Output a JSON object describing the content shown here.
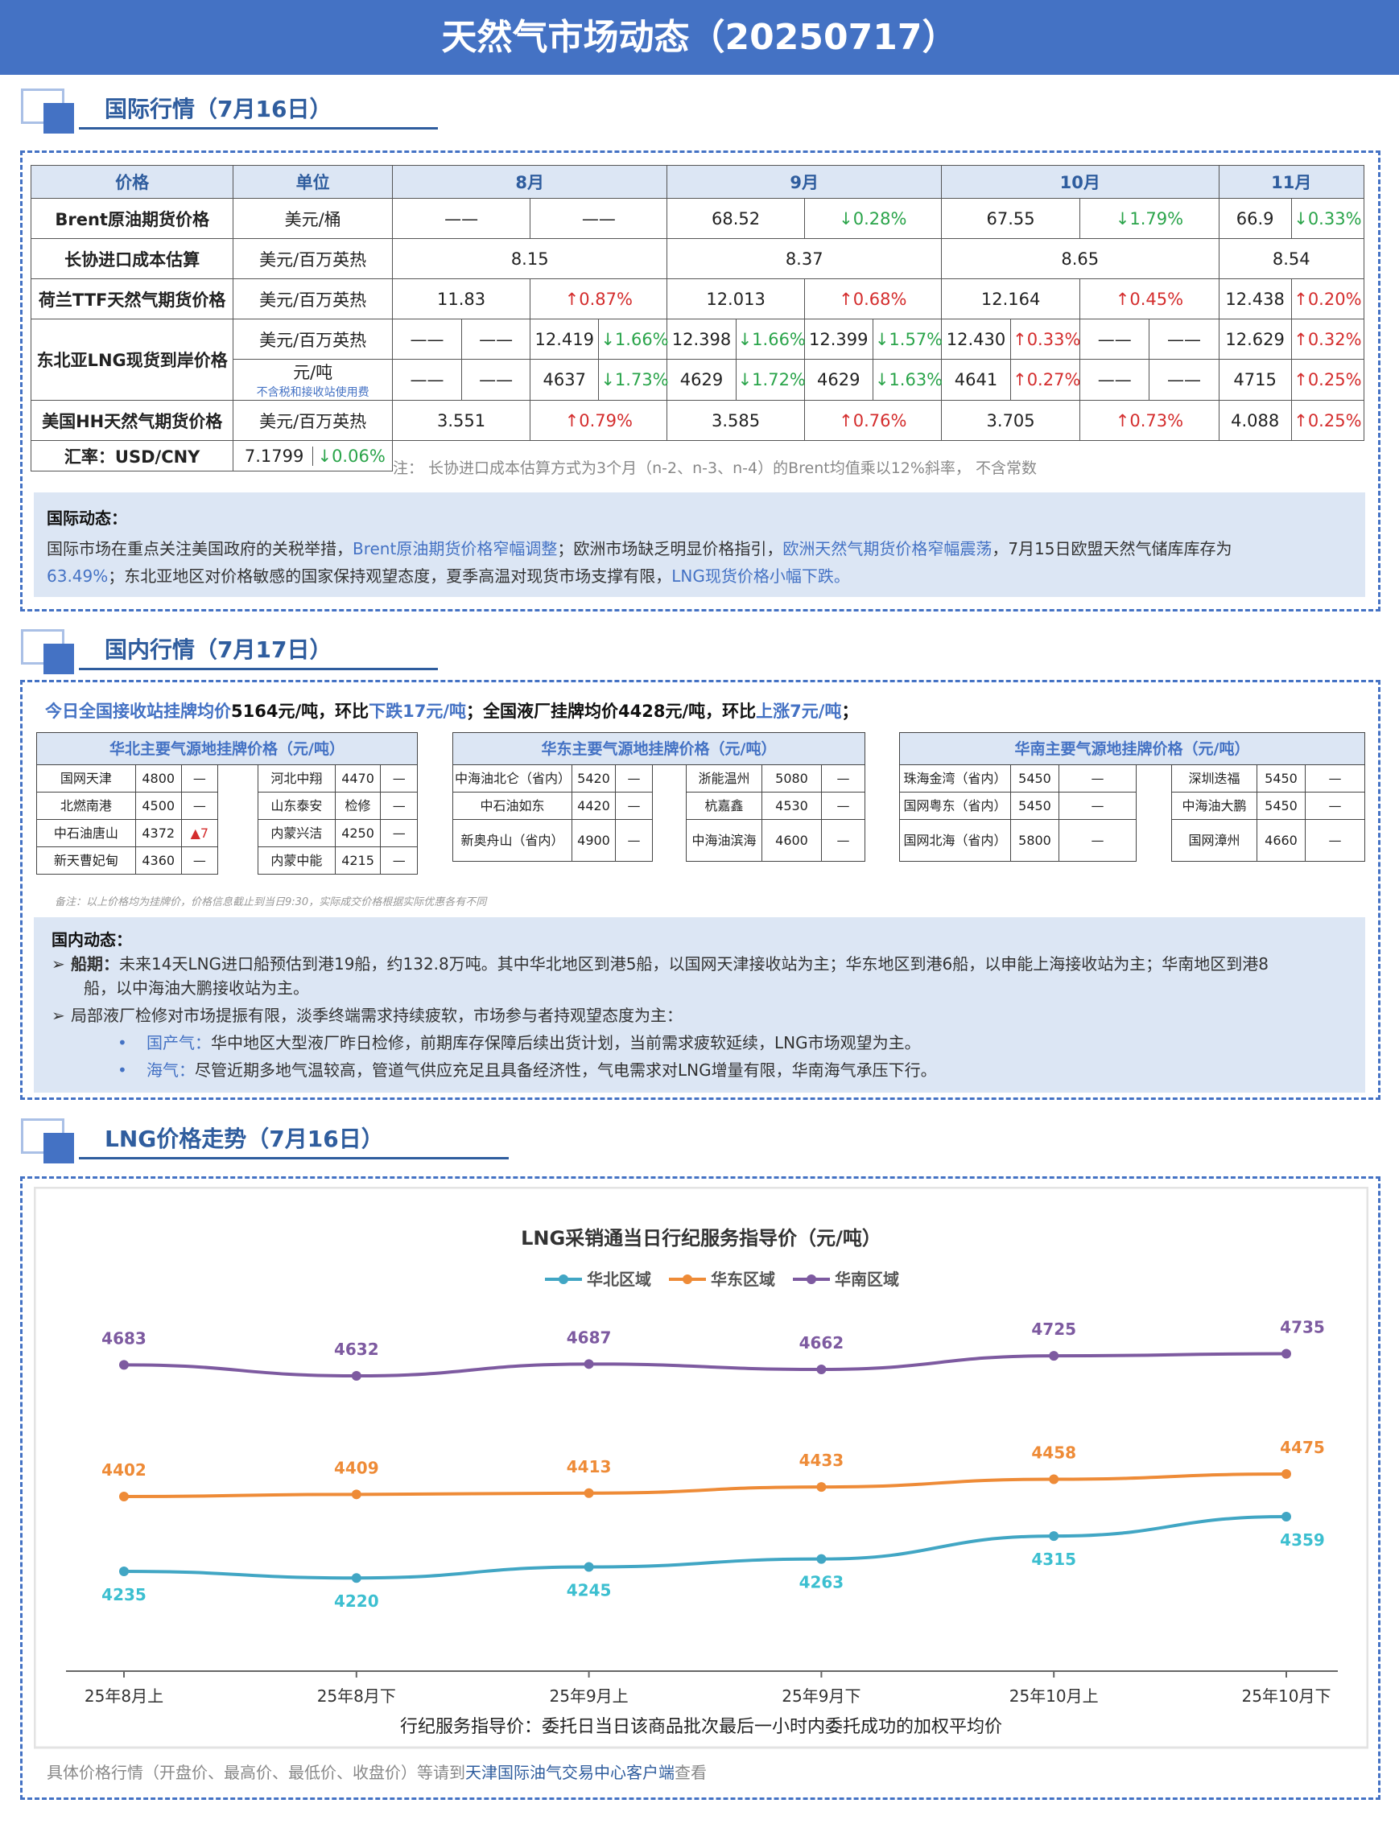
{
  "title": "天然气市场动态（20250717）",
  "sec1": "国际行情（7月16日）",
  "sec2": "国内行情（7月17日）",
  "sec3": "LNG价格走势（7月16日）",
  "intl_table": {
    "headers": [
      "价格",
      "单位",
      "8月",
      "9月",
      "10月",
      "11月"
    ],
    "brent": {
      "label": "Brent原油期货价格",
      "unit": "美元/桶",
      "c": [
        "——",
        "——",
        "68.52",
        "↓0.28%",
        "67.55",
        "↓1.79%",
        "66.9",
        "↓0.33%"
      ]
    },
    "cost": {
      "label": "长协进口成本估算",
      "unit": "美元/百万英热",
      "c": [
        "8.15",
        "8.37",
        "8.65",
        "8.54"
      ]
    },
    "ttf": {
      "label": "荷兰TTF天然气期货价格",
      "unit": "美元/百万英热",
      "c": [
        "11.83",
        "↑0.87%",
        "12.013",
        "↑0.68%",
        "12.164",
        "↑0.45%",
        "12.438",
        "↑0.20%"
      ]
    },
    "lng": {
      "label": "东北亚LNG现货到岸价格",
      "unit1": "美元/百万英热",
      "unit2": "元/吨",
      "unit2_note": "不含税和接收站使用费",
      "r1": [
        "——",
        "——",
        "12.419",
        "↓1.66%",
        "12.398",
        "↓1.66%",
        "12.399",
        "↓1.57%",
        "12.430",
        "↑0.33%",
        "——",
        "——",
        "12.629",
        "↑0.32%"
      ],
      "r2": [
        "——",
        "——",
        "4637",
        "↓1.73%",
        "4629",
        "↓1.72%",
        "4629",
        "↓1.63%",
        "4641",
        "↑0.27%",
        "——",
        "——",
        "4715",
        "↑0.25%"
      ]
    },
    "hh": {
      "label": "美国HH天然气期货价格",
      "unit": "美元/百万英热",
      "c": [
        "3.551",
        "↑0.79%",
        "3.585",
        "↑0.76%",
        "3.705",
        "↑0.73%",
        "4.088",
        "↑0.25%"
      ]
    },
    "fx": {
      "label": "汇率：USD/CNY",
      "value": "7.1799",
      "change": "↓0.06%"
    }
  },
  "note": "注：  长协进口成本估算方式为3个月（n-2、n-3、n-4）的Brent均值乘以12%斜率，  不含常数",
  "intl_dyn": {
    "head": "国际动态：",
    "p1a": "国际市场在重点关注美国政府的关税举措，",
    "p1b": "Brent原油期货价格窄幅调整",
    "p1c": "；欧洲市场缺乏明显价格指引，",
    "p1d": "欧洲天然气期货价格窄幅震荡",
    "p1e": "，7月15日欧盟天然气储库库存为",
    "p2a": "63.49%",
    "p2b": "；东北亚地区对价格敏感的国家保持观望态度，夏季高温对现货市场支撑有限，",
    "p2c": "LNG现货价格小幅下跌。"
  },
  "summary": {
    "a": "今日全国接收站挂牌均价",
    "b": "5164元/吨，环比",
    "c": "下跌17元/吨",
    "d": "；全国液厂挂牌均价",
    "e": "4428元/吨，环比",
    "f": "上涨7元/吨",
    "g": "；"
  },
  "north": {
    "caption": "华北主要气源地挂牌价格（元/吨）",
    "rows": [
      [
        "国网天津",
        "4800",
        "—",
        "河北中翔",
        "4470",
        "—"
      ],
      [
        "北燃南港",
        "4500",
        "—",
        "山东泰安",
        "检修",
        "—"
      ],
      [
        "中石油唐山",
        "4372",
        "▲7",
        "内蒙兴洁",
        "4250",
        "—"
      ],
      [
        "新天曹妃甸",
        "4360",
        "—",
        "内蒙中能",
        "4215",
        "—"
      ]
    ]
  },
  "east": {
    "caption": "华东主要气源地挂牌价格（元/吨）",
    "rows": [
      [
        "中海油北仑（省内）",
        "5420",
        "—",
        "浙能温州",
        "5080",
        "—"
      ],
      [
        "中石油如东",
        "4420",
        "—",
        "杭嘉鑫",
        "4530",
        "—"
      ],
      [
        "新奥舟山（省内）",
        "4900",
        "—",
        "中海油滨海",
        "4600",
        "—"
      ]
    ]
  },
  "south": {
    "caption": "华南主要气源地挂牌价格（元/吨）",
    "rows": [
      [
        "珠海金湾（省内）",
        "5450",
        "—",
        "深圳迭福",
        "5450",
        "—"
      ],
      [
        "国网粤东（省内）",
        "5450",
        "—",
        "中海油大鹏",
        "5450",
        "—"
      ],
      [
        "国网北海（省内）",
        "5800",
        "—",
        "国网漳州",
        "4660",
        "—"
      ]
    ]
  },
  "small_note": "备注：以上价格均为挂牌价，价格信息截止到当日9:30，实际成交价格根据实际优惠各有不同",
  "dom_dyn": {
    "head": "国内动态：",
    "b1_label": "船期：",
    "b1_text": "未来14天LNG进口船预估到港19船，约132.8万吨。其中华北地区到港5船，以国网天津接收站为主；华东地区到港6船，以申能上海接收站为主；华南地区到港8",
    "b1_text2": "船，以中海油大鹏接收站为主。",
    "b2_text": "局部液厂检修对市场提振有限，淡季终端需求持续疲软，市场参与者持观望态度为主：",
    "s1_label": "国产气：",
    "s1_text": "华中地区大型液厂昨日检修，前期库存保障后续出货计划，当前需求疲软延续，LNG市场观望为主。",
    "s2_label": "海气：",
    "s2_text": "尽管近期多地气温较高，管道气供应充足且具备经济性，气电需求对LNG增量有限，华南海气承压下行。"
  },
  "chart_data": {
    "type": "line",
    "title": "LNG采销通当日行纪服务指导价（元/吨）",
    "categories": [
      "25年8月上",
      "25年8月下",
      "25年9月上",
      "25年9月下",
      "25年10月上",
      "25年10月下"
    ],
    "series": [
      {
        "name": "华北区域",
        "values": [
          4235,
          4220,
          4245,
          4263,
          4315,
          4359
        ],
        "color": "#41a6c4"
      },
      {
        "name": "华东区域",
        "values": [
          4402,
          4409,
          4413,
          4433,
          4458,
          4475
        ],
        "color": "#ee8b37"
      },
      {
        "name": "华南区域",
        "values": [
          4683,
          4632,
          4687,
          4662,
          4725,
          4735
        ],
        "color": "#7d5aa0"
      }
    ],
    "caption": "行纪服务指导价：委托日当日该商品批次最后一小时内委托成功的加权平均价",
    "grid": false,
    "legend": "top-center"
  },
  "footer": {
    "a": "具体价格行情（开盘价、最高价、最低价、收盘价）等请到",
    "b": "天津国际油气交易中心客户端",
    "c": "查看"
  }
}
